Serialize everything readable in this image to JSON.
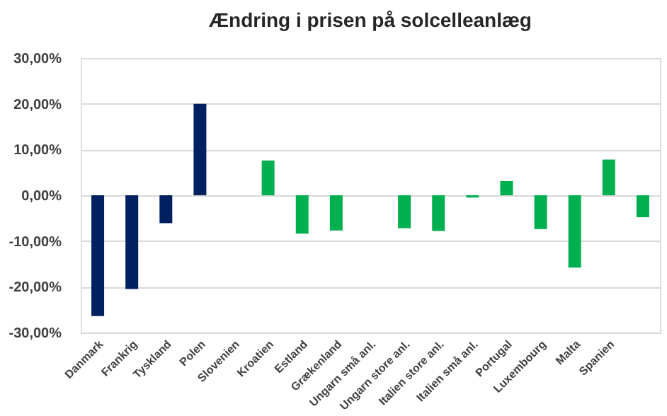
{
  "chart_data": {
    "type": "bar",
    "title": "Ændring i prisen på solcelleanlæg",
    "categories": [
      "Danmark",
      "Frankrig",
      "Tyskland",
      "Polen",
      "Slovenien",
      "Kroatien",
      "Estland",
      "Grækenland",
      "Ungarn små anl.",
      "Ungarn store anl.",
      "Italien store anl.",
      "Italien små anl.",
      "Portugal",
      "Luxembourg",
      "Malta",
      "Spanien",
      null
    ],
    "values": [
      -26.4,
      -20.5,
      -6.1,
      20,
      null,
      7.6,
      -8.4,
      -7.7,
      null,
      -7.2,
      -7.8,
      -0.5,
      3.1,
      -7.4,
      -15.8,
      7.8,
      -4.8
    ],
    "colors": [
      "#002060",
      "#002060",
      "#002060",
      "#002060",
      "#002060",
      "#00b050",
      "#00b050",
      "#00b050",
      "#00b050",
      "#00b050",
      "#00b050",
      "#00b050",
      "#00b050",
      "#00b050",
      "#00b050",
      "#00b050",
      "#00b050"
    ],
    "ylim": [
      -30,
      30
    ],
    "yticks": [
      {
        "value": -30,
        "label": "-30,00%"
      },
      {
        "value": -20,
        "label": "-20,00%"
      },
      {
        "value": -10,
        "label": "-10,00%"
      },
      {
        "value": 0,
        "label": "0,00%"
      },
      {
        "value": 10,
        "label": "10,00%"
      },
      {
        "value": 20,
        "label": "20,00%"
      },
      {
        "value": 30,
        "label": "30,00%"
      }
    ],
    "grid": "y"
  }
}
